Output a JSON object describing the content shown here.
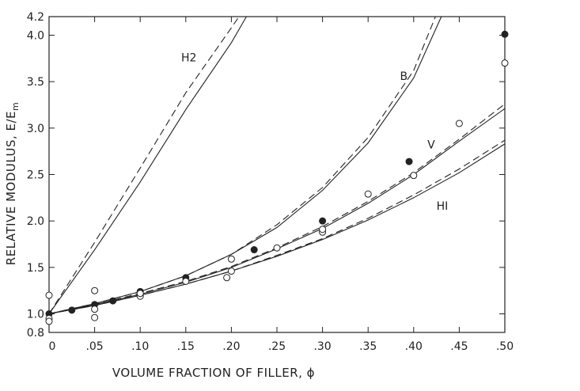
{
  "chart_data": {
    "type": "scatter",
    "xlabel": "VOLUME FRACTION OF FILLER, ϕ",
    "ylabel": "RELATIVE MODULUS, E/E",
    "ylabel_subscript": "m",
    "xlim": [
      0,
      0.5
    ],
    "ylim": [
      0.8,
      4.2
    ],
    "x_ticks": [
      0,
      0.05,
      0.1,
      0.15,
      0.2,
      0.25,
      0.3,
      0.35,
      0.4,
      0.45,
      0.5
    ],
    "x_tick_labels": [
      "0",
      ".05",
      ".10",
      ".15",
      ".20",
      ".25",
      ".30",
      ".35",
      ".40",
      ".45",
      ".50"
    ],
    "y_ticks": [
      0.8,
      1.0,
      1.5,
      2.0,
      2.5,
      3.0,
      3.5,
      4.0,
      4.2
    ],
    "y_tick_labels": [
      "0.8",
      "1.0",
      "1.5",
      "2.0",
      "2.5",
      "3.0",
      "3.5",
      "4.0",
      "4.2"
    ],
    "grid": false,
    "curves": [
      {
        "label": "H2",
        "style": "solid",
        "x": [
          0,
          0.05,
          0.1,
          0.15,
          0.2,
          0.2165
        ],
        "y": [
          1.0,
          1.69,
          2.42,
          3.2,
          3.92,
          4.2
        ]
      },
      {
        "label": "H2",
        "style": "dashed",
        "x": [
          0,
          0.05,
          0.1,
          0.15,
          0.2,
          0.2083
        ],
        "y": [
          1.0,
          1.77,
          2.57,
          3.38,
          4.08,
          4.2
        ]
      },
      {
        "label": "B",
        "style": "solid",
        "x": [
          0,
          0.05,
          0.1,
          0.15,
          0.2,
          0.25,
          0.3,
          0.35,
          0.4,
          0.4304
        ],
        "y": [
          1.0,
          1.11,
          1.24,
          1.41,
          1.64,
          1.93,
          2.33,
          2.84,
          3.54,
          4.2
        ]
      },
      {
        "label": "B",
        "style": "dashed",
        "x": [
          0,
          0.05,
          0.1,
          0.15,
          0.2,
          0.25,
          0.3,
          0.35,
          0.4,
          0.4239
        ],
        "y": [
          1.0,
          1.11,
          1.24,
          1.41,
          1.64,
          1.96,
          2.36,
          2.9,
          3.62,
          4.2
        ]
      },
      {
        "label": "V",
        "style": "solid",
        "x": [
          0,
          0.05,
          0.1,
          0.15,
          0.2,
          0.25,
          0.3,
          0.35,
          0.4,
          0.45,
          0.5
        ],
        "y": [
          1.0,
          1.1,
          1.21,
          1.34,
          1.5,
          1.7,
          1.92,
          2.19,
          2.5,
          2.86,
          3.21
        ]
      },
      {
        "label": "V",
        "style": "dashed",
        "x": [
          0,
          0.05,
          0.1,
          0.15,
          0.2,
          0.25,
          0.3,
          0.35,
          0.4,
          0.45,
          0.5
        ],
        "y": [
          1.0,
          1.1,
          1.22,
          1.35,
          1.51,
          1.71,
          1.94,
          2.21,
          2.52,
          2.88,
          3.26
        ]
      },
      {
        "label": "HI",
        "style": "solid",
        "x": [
          0,
          0.05,
          0.1,
          0.15,
          0.2,
          0.25,
          0.3,
          0.35,
          0.4,
          0.45,
          0.5
        ],
        "y": [
          1.0,
          1.09,
          1.2,
          1.32,
          1.46,
          1.62,
          1.8,
          2.01,
          2.25,
          2.52,
          2.83
        ]
      },
      {
        "label": "HI",
        "style": "dashed",
        "x": [
          0,
          0.05,
          0.1,
          0.15,
          0.2,
          0.25,
          0.3,
          0.35,
          0.4,
          0.45,
          0.5
        ],
        "y": [
          1.0,
          1.09,
          1.2,
          1.32,
          1.46,
          1.63,
          1.81,
          2.03,
          2.28,
          2.56,
          2.87
        ]
      }
    ],
    "series": [
      {
        "marker": "filled-circle",
        "x": [
          0,
          0.025,
          0.05,
          0.07,
          0.1,
          0.15,
          0.225,
          0.3,
          0.395,
          0.5
        ],
        "y": [
          1.0,
          1.04,
          1.1,
          1.14,
          1.24,
          1.39,
          1.69,
          2.0,
          2.64,
          4.01
        ]
      },
      {
        "marker": "open-circle",
        "x": [
          0,
          0,
          0,
          0.05,
          0.05,
          0.05,
          0.1,
          0.1,
          0.15,
          0.195,
          0.2,
          0.2,
          0.25,
          0.3,
          0.3,
          0.35,
          0.4,
          0.45,
          0.5
        ],
        "y": [
          1.2,
          0.95,
          0.92,
          1.25,
          1.05,
          0.96,
          1.19,
          1.22,
          1.35,
          1.39,
          1.46,
          1.59,
          1.71,
          1.88,
          1.91,
          2.29,
          2.49,
          3.05,
          3.7
        ]
      }
    ]
  }
}
